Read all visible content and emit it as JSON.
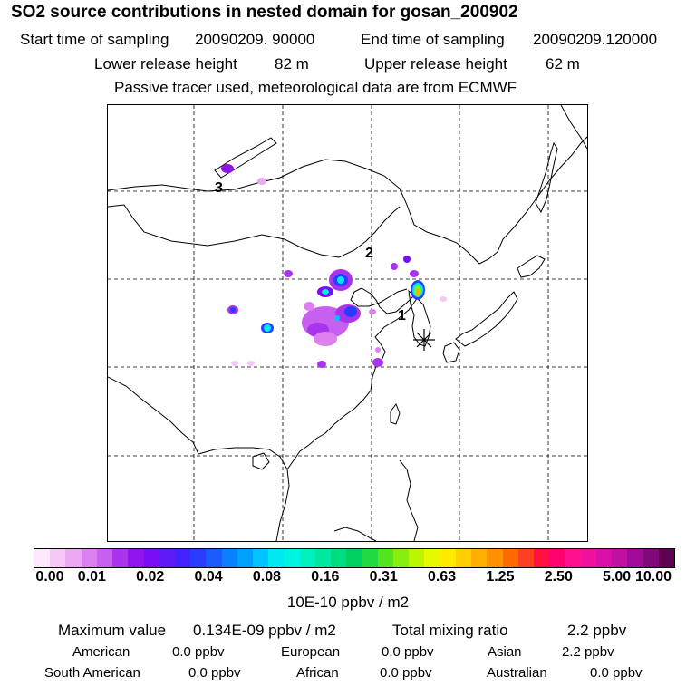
{
  "header": {
    "title": "SO2 source contributions in nested domain for gosan_200902",
    "start_label": "Start time of sampling",
    "start_value": "20090209. 90000",
    "end_label": "End time of sampling",
    "end_value": "20090209.120000",
    "lower_label": "Lower release height",
    "lower_value": "82 m",
    "upper_label": "Upper release height",
    "upper_value": "62 m",
    "note": "Passive tracer used, meteorological data are from ECMWF"
  },
  "map": {
    "region_labels": [
      "1",
      "2",
      "3"
    ],
    "receptor_symbol": "asterisk",
    "colors": {
      "coast": "#000000",
      "grid": "#000000"
    }
  },
  "colorbar": {
    "ticks": [
      "0.00",
      "0.01",
      "0.02",
      "0.04",
      "0.08",
      "0.16",
      "0.31",
      "0.63",
      "1.25",
      "2.50",
      "5.00",
      "10.00"
    ],
    "units": "10E-10 ppbv / m2",
    "colors": [
      "#fde8fd",
      "#f6c8f8",
      "#eda8f3",
      "#dd80ef",
      "#c760ef",
      "#aa33ee",
      "#8f14ee",
      "#7a0bf5",
      "#5e1af7",
      "#4422ff",
      "#2a3cff",
      "#1a5cff",
      "#0a80ff",
      "#00a0ff",
      "#00c4ff",
      "#00e8f0",
      "#00f5e0",
      "#00f0c0",
      "#00e8a0",
      "#00dd80",
      "#00d060",
      "#22d840",
      "#55e420",
      "#88ee10",
      "#bbf500",
      "#e8f800",
      "#ffea00",
      "#ffd000",
      "#ffb000",
      "#ff9000",
      "#ff6a00",
      "#ff4020",
      "#ff1040",
      "#ff0070",
      "#ff1090",
      "#f010a0",
      "#d810a8",
      "#c010a0",
      "#a00a98",
      "#800878",
      "#600050"
    ]
  },
  "footer": {
    "max_label": "Maximum value",
    "max_value": "0.134E-09 ppbv / m2",
    "total_label": "Total mixing ratio",
    "total_value": "2.2 ppbv",
    "regions": [
      {
        "name": "American",
        "value": "0.0 ppbv"
      },
      {
        "name": "European",
        "value": "0.0 ppbv"
      },
      {
        "name": "Asian",
        "value": "2.2 ppbv"
      },
      {
        "name": "South American",
        "value": "0.0 ppbv"
      },
      {
        "name": "African",
        "value": "0.0 ppbv"
      },
      {
        "name": "Australian",
        "value": "0.0 ppbv"
      }
    ]
  }
}
